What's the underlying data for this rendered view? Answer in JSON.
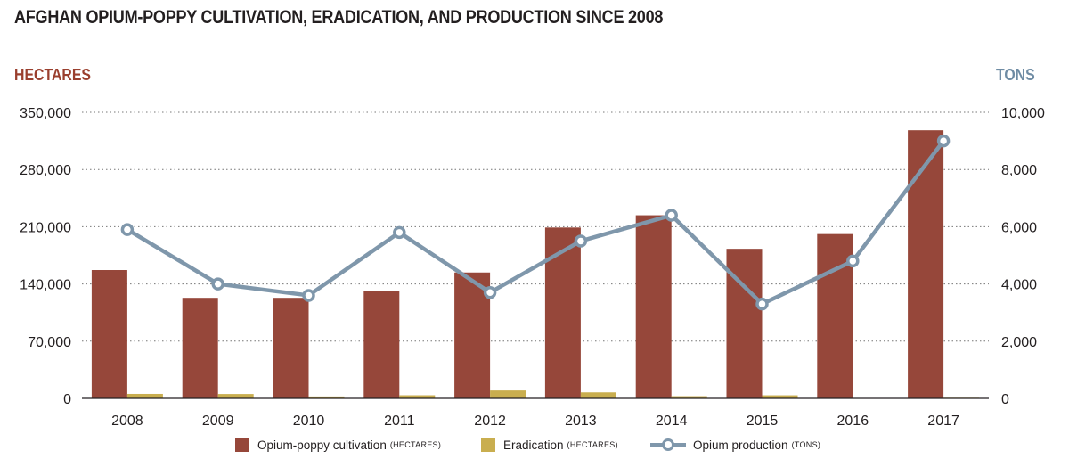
{
  "chart_data": {
    "type": "bar+line",
    "title": "AFGHAN OPIUM-POPPY CULTIVATION, ERADICATION, AND PRODUCTION SINCE 2008",
    "left_axis_label": "HECTARES",
    "right_axis_label": "TONS",
    "categories": [
      "2008",
      "2009",
      "2010",
      "2011",
      "2012",
      "2013",
      "2014",
      "2015",
      "2016",
      "2017"
    ],
    "series": [
      {
        "name": "Opium-poppy cultivation",
        "unit": "(HECTARES)",
        "kind": "bar",
        "axis": "left",
        "color": "#96473a",
        "values": [
          157000,
          123000,
          123000,
          131000,
          154000,
          209000,
          224000,
          183000,
          201000,
          328000
        ]
      },
      {
        "name": "Eradication",
        "unit": "(HECTARES)",
        "kind": "bar",
        "axis": "left",
        "color": "#c9ae4f",
        "values": [
          5480,
          5350,
          2316,
          3810,
          9672,
          7348,
          2692,
          3760,
          355,
          750
        ]
      },
      {
        "name": "Opium production",
        "unit": "(TONS)",
        "kind": "line",
        "axis": "right",
        "color": "#7f97ab",
        "values": [
          5900,
          4000,
          3600,
          5800,
          3700,
          5500,
          6400,
          3300,
          4800,
          9000
        ]
      }
    ],
    "left_ylim": [
      0,
      350000
    ],
    "left_ticks": [
      "0",
      "70,000",
      "140,000",
      "210,000",
      "280,000",
      "350,000"
    ],
    "right_ylim": [
      0,
      10000
    ],
    "right_ticks": [
      "0",
      "2,000",
      "4,000",
      "6,000",
      "8,000",
      "10,000"
    ],
    "grid": true,
    "legend_position": "bottom"
  }
}
